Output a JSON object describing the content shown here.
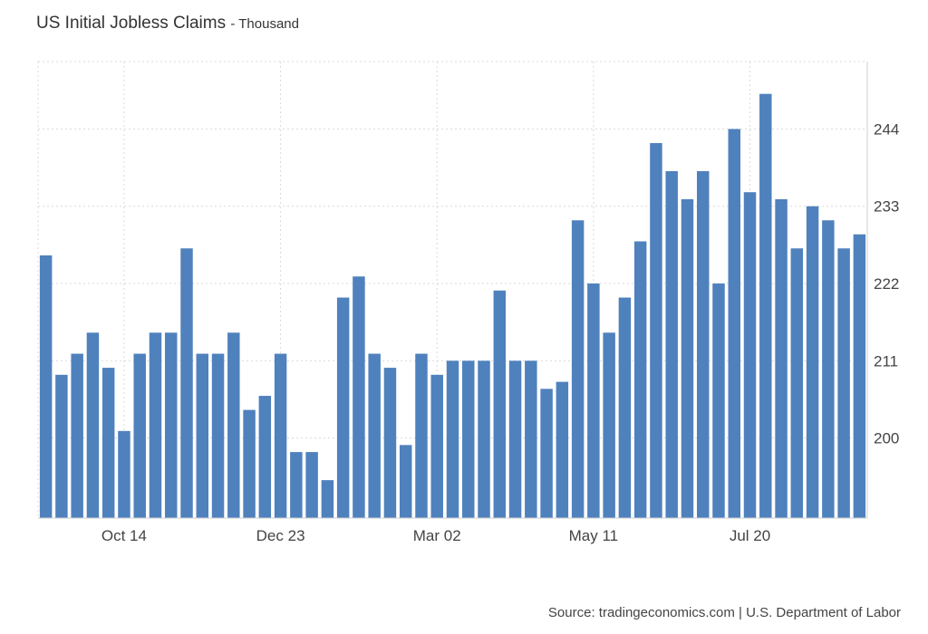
{
  "title": "US Initial Jobless Claims",
  "unit": "Thousand",
  "source": "Source: tradingeconomics.com | U.S. Department of Labor",
  "chart_data": {
    "type": "bar",
    "x_tick_labels": [
      "Oct 14",
      "Dec 23",
      "Mar 02",
      "May 11",
      "Jul 20"
    ],
    "x_tick_indices": [
      5,
      15,
      25,
      35,
      45
    ],
    "y_ticks": [
      200,
      211,
      222,
      233,
      244
    ],
    "ylim": [
      188.6,
      253.6
    ],
    "grid": true,
    "bar_color": "#4f81bd",
    "values": [
      226,
      209,
      212,
      215,
      210,
      201,
      212,
      215,
      215,
      227,
      212,
      212,
      215,
      204,
      206,
      212,
      198,
      198,
      194,
      220,
      223,
      212,
      210,
      199,
      212,
      209,
      211,
      211,
      211,
      221,
      211,
      211,
      207,
      208,
      231,
      222,
      215,
      220,
      228,
      242,
      238,
      234,
      238,
      222,
      244,
      235,
      249,
      234,
      227,
      233,
      231,
      227,
      229
    ]
  }
}
